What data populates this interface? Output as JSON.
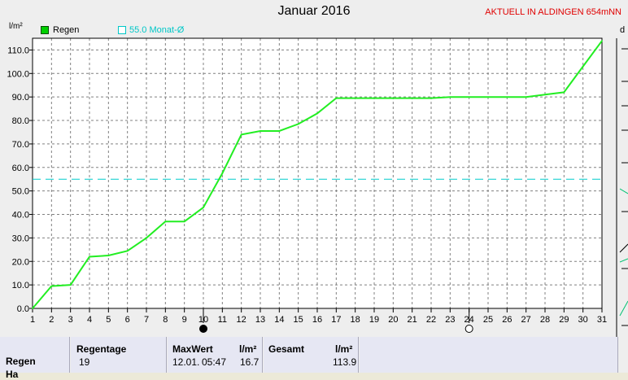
{
  "chart_data": {
    "type": "line",
    "title": "Januar 2016",
    "status": "AKTUELL IN ALDINGEN 654mNN",
    "ylabel": "l/m²",
    "ylim": [
      0,
      115
    ],
    "yticks": [
      "0.0",
      "10.0",
      "20.0",
      "30.0",
      "40.0",
      "50.0",
      "60.0",
      "70.0",
      "80.0",
      "90.0",
      "100.0",
      "110.0"
    ],
    "xticks": [
      "1",
      "2",
      "3",
      "4",
      "5",
      "6",
      "7",
      "8",
      "9",
      "10",
      "11",
      "12",
      "13",
      "14",
      "15",
      "16",
      "17",
      "18",
      "19",
      "20",
      "21",
      "22",
      "23",
      "24",
      "25",
      "26",
      "27",
      "28",
      "29",
      "30",
      "31"
    ],
    "grid": true,
    "series": [
      {
        "name": "Regen",
        "color": "#22ee22",
        "x": [
          1,
          2,
          3,
          4,
          5,
          6,
          7,
          8,
          9,
          10,
          11,
          12,
          13,
          14,
          15,
          16,
          17,
          18,
          19,
          20,
          21,
          22,
          23,
          24,
          25,
          26,
          27,
          28,
          29,
          30,
          31
        ],
        "values": [
          0.0,
          9.5,
          10.0,
          22.0,
          22.5,
          24.5,
          30.0,
          37.0,
          37.0,
          43.0,
          57.5,
          74.0,
          75.5,
          75.5,
          78.5,
          83.0,
          89.5,
          89.5,
          89.5,
          89.5,
          89.5,
          89.5,
          90.0,
          90.0,
          90.0,
          90.0,
          90.0,
          91.0,
          92.0,
          103.0,
          113.9
        ]
      }
    ],
    "reference_line": {
      "label": "55.0 Monat-Ø",
      "value": 55.0,
      "color": "#00cccc"
    },
    "moon_markers": [
      {
        "x": 10,
        "phase": "new-moon"
      },
      {
        "x": 24,
        "phase": "full-moon"
      }
    ]
  },
  "right_edge_letter": "d",
  "summary": {
    "row_label": "Regen",
    "cut_label": "Ha",
    "regentage_header": "Regentage",
    "regentage_value": "19",
    "maxwert_header": "MaxWert",
    "maxwert_unit": "l/m²",
    "maxwert_date": "12.01.",
    "maxwert_time": "05:47",
    "maxwert_value": "16.7",
    "gesamt_header": "Gesamt",
    "gesamt_unit": "l/m²",
    "gesamt_value": "113.9"
  }
}
